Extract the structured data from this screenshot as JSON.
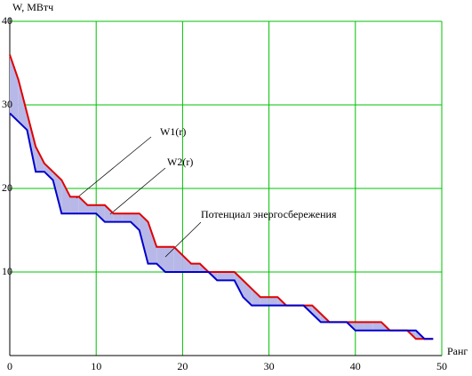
{
  "chart_data": {
    "type": "line",
    "y_label": "W, МВтч",
    "x_label": "Ранг",
    "annotation": "Потенциал энергосбережения",
    "x": [
      0,
      1,
      2,
      3,
      4,
      5,
      6,
      7,
      8,
      9,
      10,
      11,
      12,
      13,
      14,
      15,
      16,
      17,
      18,
      19,
      20,
      21,
      22,
      23,
      24,
      25,
      26,
      27,
      28,
      29,
      30,
      31,
      32,
      33,
      34,
      35,
      36,
      37,
      38,
      39,
      40,
      41,
      42,
      43,
      44,
      45,
      46,
      47,
      48,
      49
    ],
    "series": [
      {
        "name": "W1(r)",
        "color": "#e00000",
        "values": [
          36,
          33,
          29,
          25,
          23,
          22,
          21,
          19,
          19,
          18,
          18,
          18,
          17,
          17,
          17,
          17,
          16,
          13,
          13,
          13,
          12,
          11,
          11,
          10,
          10,
          10,
          10,
          9,
          8,
          7,
          7,
          7,
          6,
          6,
          6,
          6,
          5,
          4,
          4,
          4,
          4,
          4,
          4,
          4,
          3,
          3,
          3,
          2,
          2,
          2
        ]
      },
      {
        "name": "W2(r)",
        "color": "#0000cc",
        "values": [
          29,
          28,
          27,
          22,
          22,
          21,
          17,
          17,
          17,
          17,
          17,
          16,
          16,
          16,
          16,
          15,
          11,
          11,
          10,
          10,
          10,
          10,
          10,
          10,
          9,
          9,
          9,
          7,
          6,
          6,
          6,
          6,
          6,
          6,
          6,
          5,
          4,
          4,
          4,
          4,
          3,
          3,
          3,
          3,
          3,
          3,
          3,
          3,
          2,
          2
        ]
      }
    ],
    "fill_color": "#b8b8e8",
    "xlim": [
      0,
      50
    ],
    "xticks": [
      0,
      10,
      20,
      30,
      40,
      50
    ],
    "ylim": [
      0,
      40
    ],
    "yticks": [
      10,
      20,
      30,
      40
    ],
    "grid": true,
    "grid_color": "#00c000"
  }
}
